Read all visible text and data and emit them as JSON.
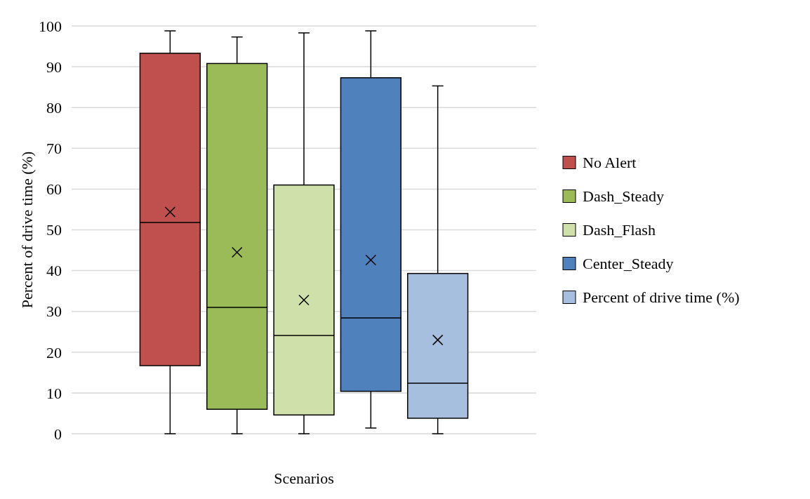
{
  "chart_data": {
    "type": "box",
    "ylabel": "Percent of drive time (%)",
    "xlabel": "Scenarios",
    "categories": [
      null
    ],
    "ylim": [
      0,
      100
    ],
    "yticks": [
      0,
      10,
      20,
      30,
      40,
      50,
      60,
      70,
      80,
      90,
      100
    ],
    "grid": "y",
    "legend": "right",
    "series": [
      {
        "name": "No Alert",
        "color": "#c0504d",
        "boxes": [
          {
            "low": 0,
            "q1": 16.7,
            "median": 51.8,
            "q3": 93.3,
            "high": 98.8,
            "mean": 54.4
          }
        ]
      },
      {
        "name": "Dash_Steady",
        "color": "#9bbb59",
        "boxes": [
          {
            "low": 0,
            "q1": 6,
            "median": 31,
            "q3": 90.8,
            "high": 97.3,
            "mean": 44.5
          }
        ]
      },
      {
        "name": "Dash_Flash",
        "color": "#d0e0ab",
        "boxes": [
          {
            "low": 0,
            "q1": 4.6,
            "median": 24.1,
            "q3": 61,
            "high": 98.3,
            "mean": 32.8
          }
        ]
      },
      {
        "name": "Center_Steady",
        "color": "#4f81bd",
        "boxes": [
          {
            "low": 1.4,
            "q1": 10.4,
            "median": 28.4,
            "q3": 87.3,
            "high": 98.8,
            "mean": 42.6
          }
        ]
      },
      {
        "name": "Percent of drive time (%)",
        "color": "#a7bfdf",
        "boxes": [
          {
            "low": 0,
            "q1": 3.8,
            "median": 12.4,
            "q3": 39.3,
            "high": 85.3,
            "mean": 23
          }
        ]
      }
    ]
  }
}
